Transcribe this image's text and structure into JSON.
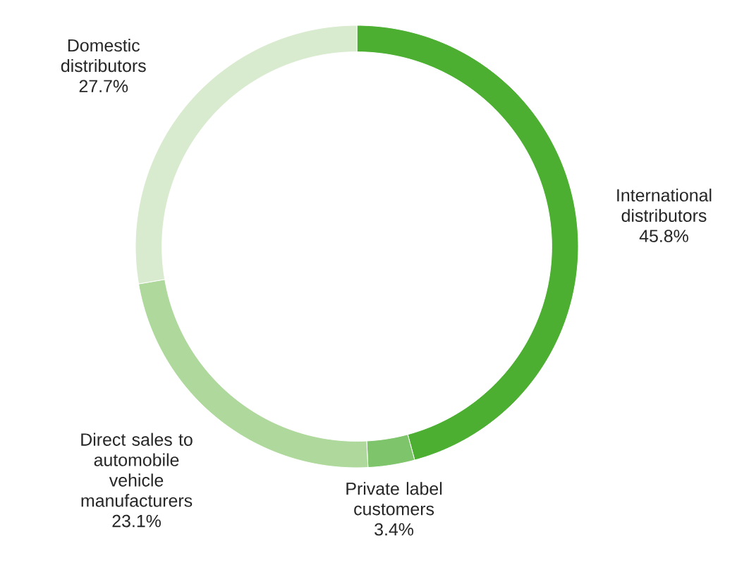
{
  "chart_data": {
    "type": "donut",
    "categories": [
      "International distributors",
      "Private label customers",
      "Direct sales to automobile vehicle manufacturers",
      "Domestic distributors"
    ],
    "values": [
      45.8,
      3.4,
      23.1,
      27.7
    ],
    "colors": [
      "#4caf32",
      "#7dc46a",
      "#afd89c",
      "#d9ebcf"
    ],
    "value_labels": [
      "45.8%",
      "3.4%",
      "23.1%",
      "27.7%"
    ]
  }
}
